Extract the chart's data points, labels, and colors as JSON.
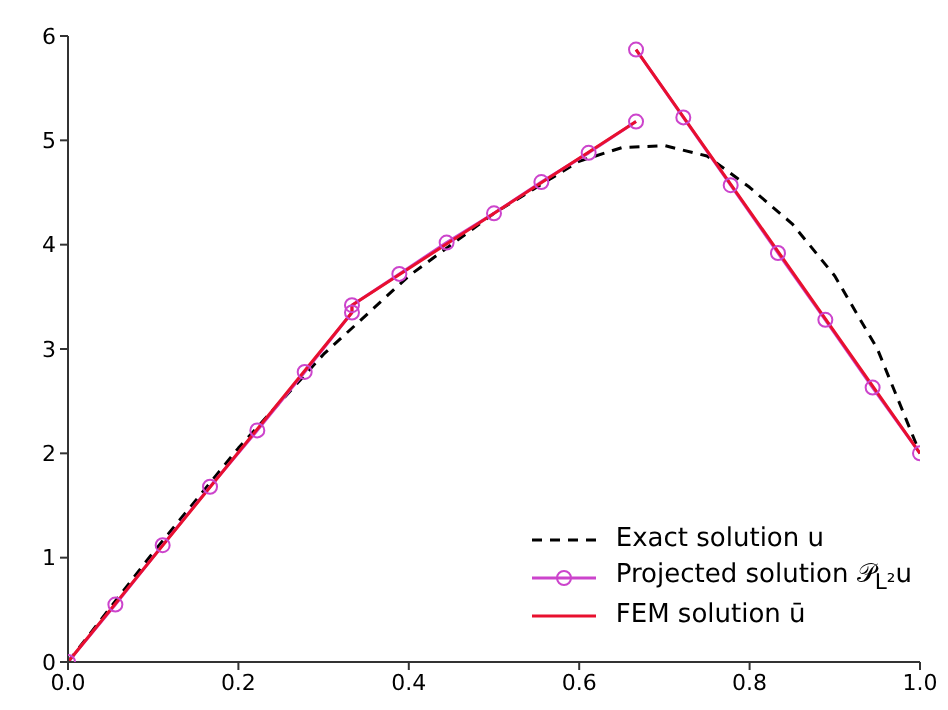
{
  "chart_data": {
    "type": "line",
    "xlim": [
      0,
      1
    ],
    "ylim": [
      0,
      6
    ],
    "xticks": [
      {
        "value": 0,
        "label": "0.0"
      },
      {
        "value": 0.2,
        "label": "0.2"
      },
      {
        "value": 0.4,
        "label": "0.4"
      },
      {
        "value": 0.6,
        "label": "0.6"
      },
      {
        "value": 0.8,
        "label": "0.8"
      },
      {
        "value": 1,
        "label": "1.0"
      }
    ],
    "yticks": [
      0,
      1,
      2,
      3,
      4,
      5,
      6
    ],
    "legend": "bottom right",
    "series": [
      {
        "name": "Exact solution u",
        "color": "#000000",
        "line_style": "dashed",
        "marker": "none",
        "x": [
          0,
          0.1,
          0.2,
          0.3,
          0.4,
          0.5,
          0.6,
          0.65,
          0.7,
          0.75,
          0.8,
          0.85,
          0.9,
          0.95,
          1
        ],
        "values": [
          0,
          1.05,
          2.05,
          2.95,
          3.7,
          4.3,
          4.8,
          4.93,
          4.95,
          4.85,
          4.55,
          4.2,
          3.7,
          3.0,
          2.0
        ]
      },
      {
        "name": "Projected solution 𝒫$_{L²}$u",
        "color": "#cc44cc",
        "line_style": "solid",
        "marker": "circle",
        "x": [
          0,
          0.0556,
          0.1111,
          0.1667,
          0.2222,
          0.2778,
          0.3333,
          0.3333,
          0.3889,
          0.4444,
          0.5,
          0.5556,
          0.6111,
          0.6667,
          null,
          0.6667,
          0.7222,
          0.7778,
          0.8333,
          0.8889,
          0.9444,
          1
        ],
        "values": [
          0,
          0.55,
          1.12,
          1.68,
          2.22,
          2.78,
          3.35,
          3.42,
          3.72,
          4.02,
          4.3,
          4.6,
          4.88,
          5.18,
          null,
          5.87,
          5.22,
          4.57,
          3.92,
          3.28,
          2.63,
          2.0
        ]
      },
      {
        "name": "FEM solution ū",
        "color": "#e8102e",
        "line_style": "solid",
        "marker": "none",
        "x": [
          0,
          0.3333,
          0.3333,
          0.6667,
          null,
          0.6667,
          1
        ],
        "values": [
          0,
          3.35,
          3.42,
          5.18,
          null,
          5.87,
          2.0
        ]
      }
    ]
  }
}
